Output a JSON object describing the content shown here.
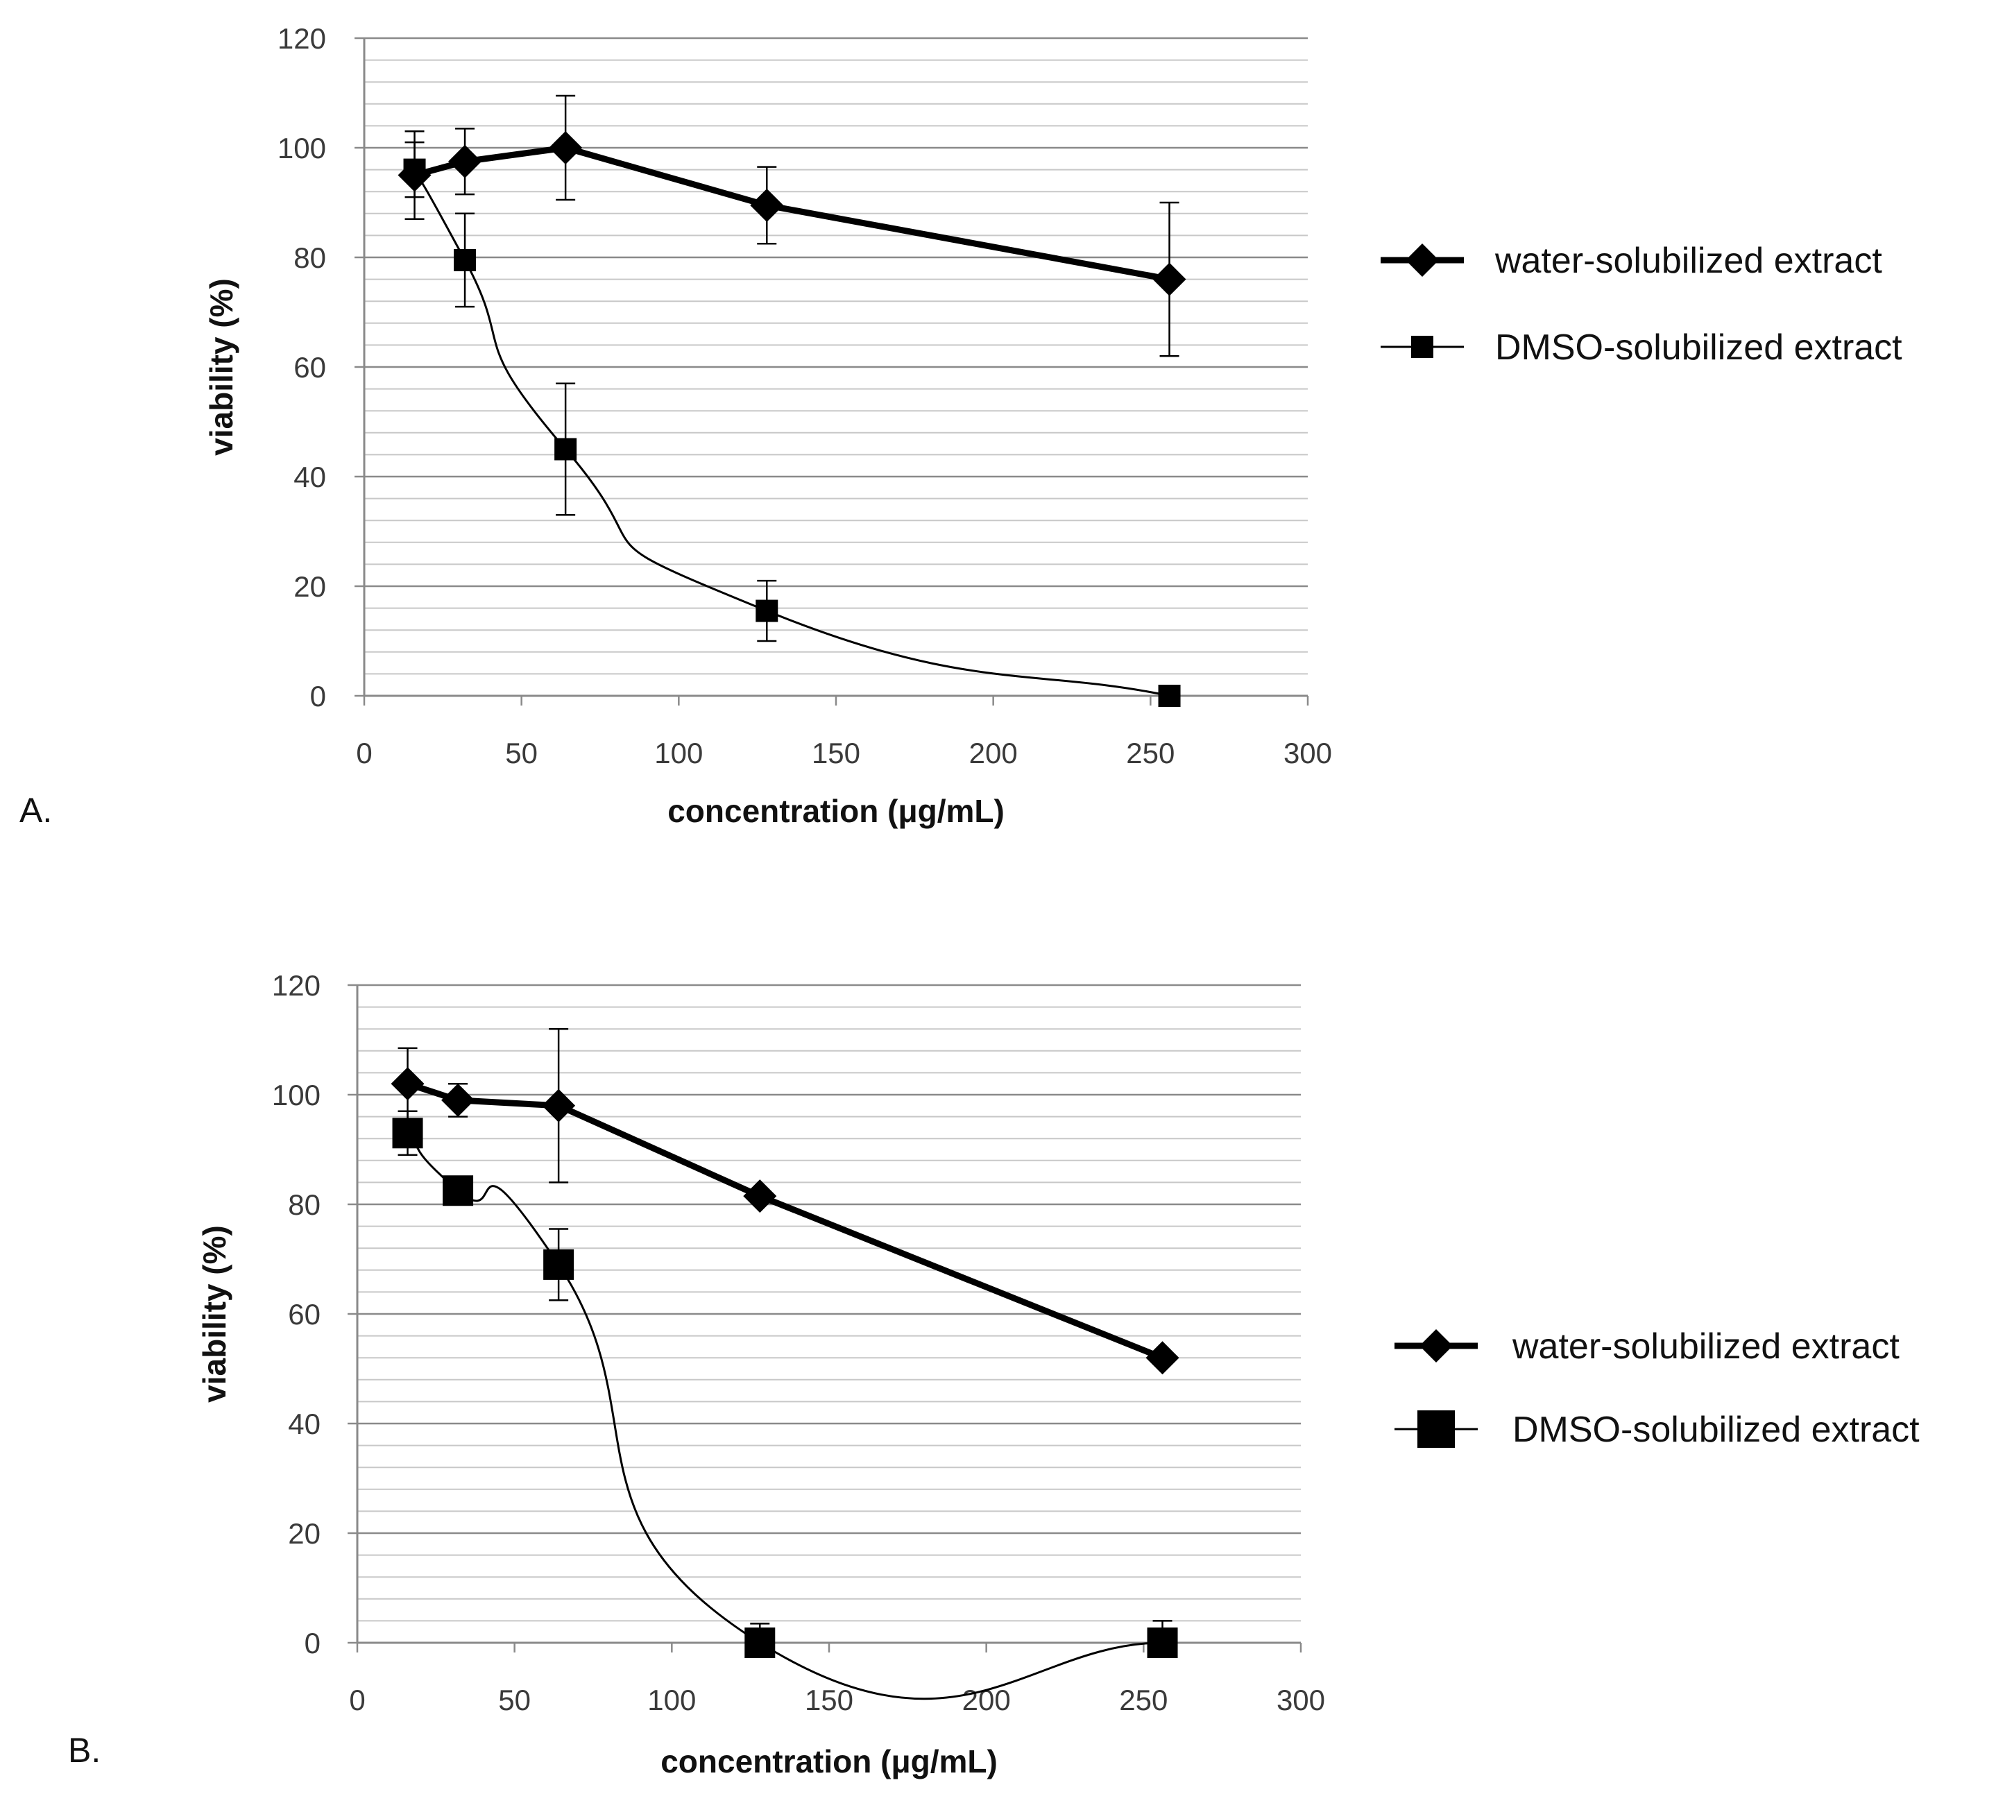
{
  "chart_data": [
    {
      "type": "line",
      "panel_label": "A.",
      "xlabel": "concentration (μg/mL)",
      "ylabel": "viability (%)",
      "xlim": [
        0,
        300
      ],
      "ylim": [
        0,
        120
      ],
      "x_ticks": [
        "0",
        "50",
        "100",
        "150",
        "200",
        "250",
        "300"
      ],
      "y_ticks": [
        "0",
        "20",
        "40",
        "60",
        "80",
        "100",
        "120"
      ],
      "minor_gridlines": true,
      "legend_position": "right",
      "series": [
        {
          "name": "water-solubilized extract",
          "marker": "diamond",
          "line": "thick",
          "x": [
            16,
            32,
            64,
            128,
            256
          ],
          "y": [
            95,
            97.5,
            100,
            89.5,
            76
          ],
          "err": [
            8,
            6,
            9.5,
            7,
            14
          ]
        },
        {
          "name": "DMSO-solubilized extract",
          "marker": "square",
          "line": "thin",
          "x": [
            16,
            32,
            64,
            128,
            256
          ],
          "y": [
            96,
            79.5,
            45,
            15.5,
            0
          ],
          "err": [
            5,
            8.5,
            12,
            5.5,
            0
          ]
        }
      ]
    },
    {
      "type": "line",
      "panel_label": "B.",
      "xlabel": "concentration (μg/mL)",
      "ylabel": "viability (%)",
      "xlim": [
        0,
        300
      ],
      "ylim": [
        0,
        120
      ],
      "x_ticks": [
        "0",
        "50",
        "100",
        "150",
        "200",
        "250",
        "300"
      ],
      "y_ticks": [
        "0",
        "20",
        "40",
        "60",
        "80",
        "100",
        "120"
      ],
      "minor_gridlines": true,
      "legend_position": "right",
      "series": [
        {
          "name": "water-solubilized extract",
          "marker": "diamond",
          "line": "thick",
          "x": [
            16,
            32,
            64,
            128,
            256
          ],
          "y": [
            102,
            99,
            98,
            81.5,
            52
          ],
          "err": [
            6.5,
            3,
            14,
            0,
            0
          ]
        },
        {
          "name": "DMSO-solubilized extract",
          "marker": "square-large",
          "line": "thin",
          "x": [
            16,
            32,
            64,
            128,
            256
          ],
          "y": [
            93,
            82.5,
            69,
            0,
            0
          ],
          "err": [
            4,
            0,
            6.5,
            3.5,
            4
          ]
        }
      ]
    }
  ]
}
